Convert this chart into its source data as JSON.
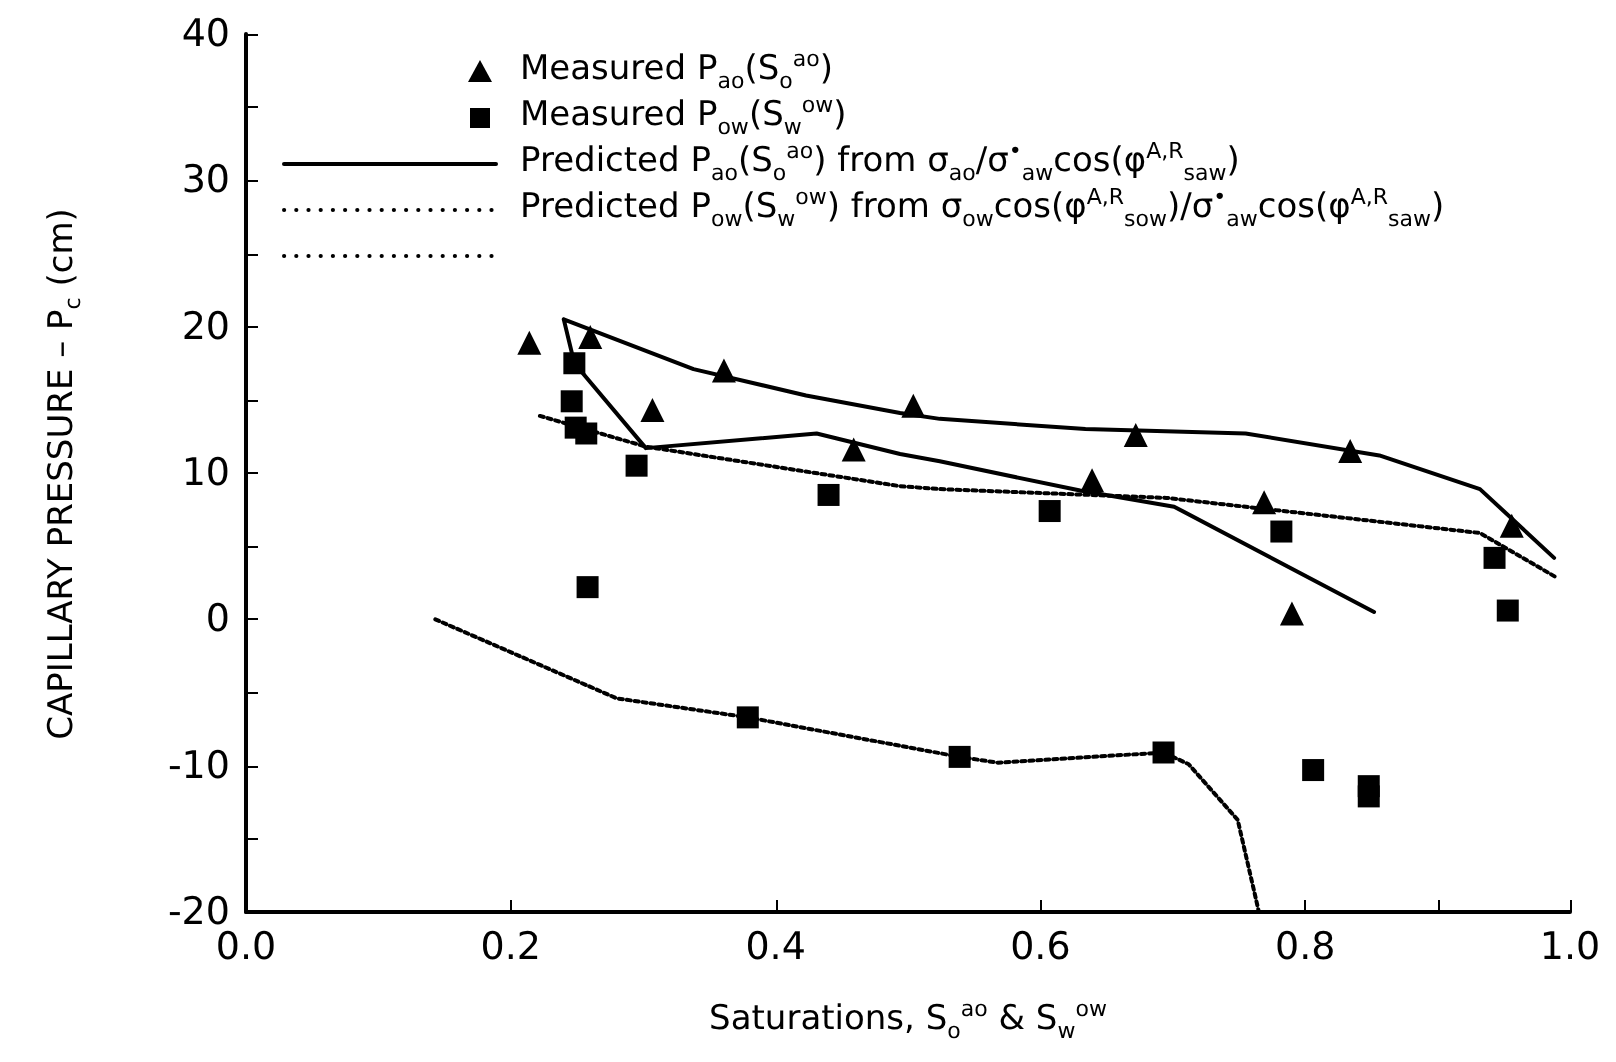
{
  "chart_data": {
    "type": "scatter",
    "xlabel": "Saturations, S$_{o}$$^{ao}$ & S$_{w}$$^{ow}$",
    "ylabel": "CAPILLARY PRESSURE – P$_{c}$ (cm)",
    "xlim": [
      0,
      1
    ],
    "xticks": [
      {
        "value": 0,
        "label": "0.0"
      },
      {
        "value": 0.2,
        "label": "0.2"
      },
      {
        "value": 0.4,
        "label": "0.4"
      },
      {
        "value": 0.6,
        "label": "0.6"
      },
      {
        "value": 0.8,
        "label": "0.8"
      },
      {
        "value": 0.9,
        "label": null
      },
      {
        "value": 1,
        "label": "1.0"
      }
    ],
    "ylim": [
      -20,
      40
    ],
    "yticks": [
      -20,
      {
        "value": -15,
        "label": null
      },
      -10,
      {
        "value": -5,
        "label": null
      },
      0,
      {
        "value": 5,
        "label": null
      },
      10,
      {
        "value": 15,
        "label": null
      },
      20,
      {
        "value": 25,
        "label": null
      },
      30,
      {
        "value": 35,
        "label": null
      },
      40
    ],
    "grid": false,
    "legend": "top left",
    "series": [
      {
        "name": "Measured P$_{ao}$(S$_{o}$$^{ao}$)",
        "type": "scatter",
        "marker": "triangle",
        "color": "#000000",
        "x": [
          0.214,
          0.26,
          0.307,
          0.361,
          0.459,
          0.504,
          0.639,
          0.672,
          0.769,
          0.79,
          0.834,
          0.956
        ],
        "values": [
          18.9,
          19.3,
          14.3,
          17.0,
          11.6,
          14.6,
          9.5,
          12.6,
          8.0,
          0.4,
          11.5,
          6.4
        ]
      },
      {
        "name": "Measured P$_{ow}$(S$_{w}$$^{ow}$)",
        "type": "scatter",
        "marker": "square",
        "color": "#000000",
        "x": [
          0.248,
          0.246,
          0.249,
          0.257,
          0.258,
          0.295,
          0.379,
          0.44,
          0.539,
          0.607,
          0.693,
          0.782,
          0.806,
          0.848,
          0.848,
          0.943,
          0.953
        ],
        "values": [
          17.5,
          14.9,
          13.1,
          12.7,
          2.2,
          10.5,
          -6.7,
          8.5,
          -9.4,
          7.4,
          -9.1,
          6.0,
          -10.3,
          -11.4,
          -12.1,
          4.2,
          0.6
        ]
      },
      {
        "name": "Predicted P$_{ao}$(S$_{o}$$^{ao}$) from σ$_{ao}$/σ$^{•}$$_{aw}$cos(φ$^{A,R}$$_{saw}$)",
        "type": "line",
        "marker": "none",
        "line_style": "solid",
        "color": "#000000",
        "x": [
          0.24,
          0.338,
          0.423,
          0.494,
          0.524,
          0.634,
          0.755,
          0.856,
          0.932,
          0.988,
          null,
          0.24,
          0.248,
          0.302,
          0.431,
          0.494,
          0.524,
          0.63,
          0.701,
          0.852
        ],
        "values": [
          20.5,
          17.1,
          15.3,
          14.1,
          13.7,
          13.0,
          12.7,
          11.2,
          8.9,
          4.2,
          null,
          20.5,
          17.5,
          11.7,
          12.7,
          11.3,
          10.8,
          8.8,
          7.7,
          0.5
        ]
      },
      {
        "name": "Predicted P$_{ow}$(S$_{w}$$^{ow}$) from σ$_{ow}$cos(φ$^{A,R}$$_{sow}$)/σ$^{•}$$_{aw}$cos(φ$^{A,R}$$_{saw}$)",
        "type": "line",
        "marker": "none",
        "line_style": "dotted",
        "color": "#000000",
        "x": [
          0.222,
          0.302,
          0.494,
          0.524,
          0.695,
          0.932,
          0.989
        ],
        "values": [
          13.9,
          11.8,
          9.1,
          8.9,
          8.3,
          5.9,
          2.9
        ]
      },
      {
        "type": "line",
        "marker": "none",
        "line_style": "dotted",
        "color": "#000000",
        "x": [
          0.143,
          0.28,
          0.379,
          0.539,
          0.568,
          0.693,
          0.712,
          0.749,
          0.762,
          0.765
        ],
        "values": [
          0,
          -5.4,
          -6.7,
          -9.4,
          -9.8,
          -9.1,
          -9.9,
          -13.7,
          -18.8,
          -20
        ]
      }
    ]
  }
}
